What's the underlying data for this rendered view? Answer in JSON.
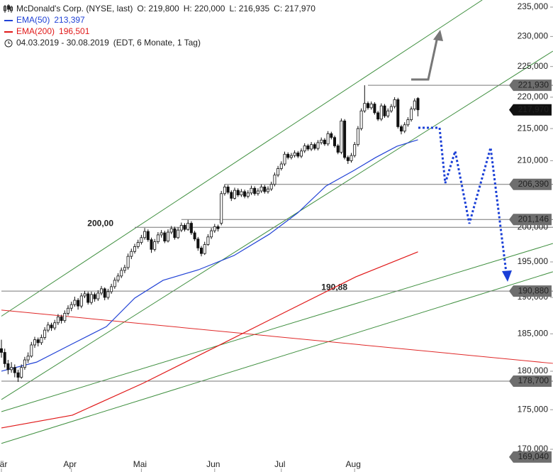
{
  "chart_data": {
    "type": "candlestick",
    "title": "McDonald's Corp. (NYSE, last)",
    "ohlc_labels": [
      "O: 219,800",
      "H: 220,000",
      "L: 216,935",
      "C: 217,970"
    ],
    "period": "04.03.2019 - 30.08.2019",
    "period_note": "(EDT, 6 Monate, 1 Tag)",
    "log_scale": true,
    "ylim": [
      170000,
      235000
    ],
    "yticks": [
      {
        "value": 170000,
        "label": "170,000"
      },
      {
        "value": 175000,
        "label": "175,000"
      },
      {
        "value": 180000,
        "label": "180,000"
      },
      {
        "value": 185000,
        "label": "185,000"
      },
      {
        "value": 190000,
        "label": "190,000"
      },
      {
        "value": 195000,
        "label": "195,000"
      },
      {
        "value": 200000,
        "label": "200,000"
      },
      {
        "value": 210000,
        "label": "210,000"
      },
      {
        "value": 215000,
        "label": "215,000"
      },
      {
        "value": 220000,
        "label": "220,000"
      },
      {
        "value": 225000,
        "label": "225,000"
      },
      {
        "value": 230000,
        "label": "230,000"
      },
      {
        "value": 235000,
        "label": "235,000"
      }
    ],
    "xticks": [
      {
        "value": 0,
        "label": "Mär"
      },
      {
        "value": 21,
        "label": "Apr"
      },
      {
        "value": 42,
        "label": "Mai"
      },
      {
        "value": 64,
        "label": "Jun"
      },
      {
        "value": 84,
        "label": "Jul"
      },
      {
        "value": 106,
        "label": "Aug"
      }
    ],
    "candles": [
      [
        183000,
        184200,
        181800,
        182500
      ],
      [
        182500,
        183000,
        180500,
        181000
      ],
      [
        181000,
        181500,
        179600,
        180200
      ],
      [
        180200,
        181200,
        179800,
        180500
      ],
      [
        180500,
        180900,
        179200,
        179800
      ],
      [
        179800,
        180200,
        178600,
        179200
      ],
      [
        179200,
        180900,
        179000,
        180500
      ],
      [
        180500,
        181900,
        180200,
        181500
      ],
      [
        181500,
        182500,
        181100,
        182000
      ],
      [
        182000,
        183900,
        181800,
        183500
      ],
      [
        183500,
        184600,
        183100,
        184200
      ],
      [
        184200,
        184500,
        183300,
        183800
      ],
      [
        183800,
        184900,
        183500,
        184500
      ],
      [
        184500,
        185900,
        184200,
        185500
      ],
      [
        185500,
        186600,
        185200,
        186200
      ],
      [
        186200,
        186500,
        185400,
        185800
      ],
      [
        185800,
        186900,
        185500,
        186500
      ],
      [
        186500,
        187700,
        186200,
        187300
      ],
      [
        187300,
        187600,
        186400,
        186800
      ],
      [
        186800,
        188200,
        186500,
        187800
      ],
      [
        187800,
        188900,
        187500,
        188500
      ],
      [
        188500,
        189400,
        188100,
        189000
      ],
      [
        189000,
        190100,
        188700,
        189600
      ],
      [
        189600,
        189900,
        188300,
        188800
      ],
      [
        188800,
        190600,
        188500,
        190200
      ],
      [
        190200,
        190900,
        189900,
        190500
      ],
      [
        190500,
        190800,
        189000,
        189300
      ],
      [
        189300,
        190800,
        189000,
        190400
      ],
      [
        190400,
        190700,
        189400,
        189800
      ],
      [
        189800,
        191000,
        189500,
        190600
      ],
      [
        190600,
        191600,
        190300,
        191200
      ],
      [
        191200,
        191400,
        189600,
        190000
      ],
      [
        190000,
        191200,
        189700,
        190800
      ],
      [
        190800,
        191900,
        190500,
        191500
      ],
      [
        191500,
        192800,
        191200,
        192400
      ],
      [
        192400,
        193400,
        192100,
        193000
      ],
      [
        193000,
        194200,
        192700,
        193800
      ],
      [
        193800,
        194600,
        193400,
        194200
      ],
      [
        194200,
        196200,
        193900,
        195800
      ],
      [
        195800,
        196900,
        195400,
        196500
      ],
      [
        196500,
        197600,
        196200,
        197200
      ],
      [
        197200,
        198200,
        196900,
        197800
      ],
      [
        197800,
        198900,
        197500,
        198500
      ],
      [
        198500,
        199900,
        198200,
        199400
      ],
      [
        199400,
        199700,
        197900,
        198200
      ],
      [
        198200,
        198500,
        196300,
        196800
      ],
      [
        196800,
        198300,
        196500,
        197900
      ],
      [
        197900,
        199300,
        197600,
        198900
      ],
      [
        198900,
        199600,
        198500,
        199200
      ],
      [
        199200,
        199500,
        197700,
        198000
      ],
      [
        198000,
        199700,
        197800,
        199300
      ],
      [
        199300,
        200200,
        199000,
        199800
      ],
      [
        199800,
        200100,
        198200,
        198500
      ],
      [
        198500,
        200000,
        198300,
        199600
      ],
      [
        199600,
        200700,
        199300,
        200300
      ],
      [
        200300,
        200600,
        199400,
        199700
      ],
      [
        199700,
        201100,
        199500,
        200600
      ],
      [
        200600,
        200900,
        198900,
        199200
      ],
      [
        199200,
        199500,
        198000,
        198300
      ],
      [
        198300,
        198600,
        196600,
        197000
      ],
      [
        197000,
        197300,
        195800,
        196200
      ],
      [
        196200,
        197900,
        196000,
        197500
      ],
      [
        197500,
        199000,
        197300,
        198600
      ],
      [
        198600,
        199900,
        198300,
        199500
      ],
      [
        199500,
        200500,
        199200,
        200100
      ],
      [
        200100,
        200400,
        199400,
        199800
      ],
      [
        200600,
        205400,
        200300,
        205000
      ],
      [
        205000,
        206400,
        204700,
        206000
      ],
      [
        206000,
        206300,
        204900,
        205200
      ],
      [
        205200,
        205500,
        203900,
        204300
      ],
      [
        204300,
        205900,
        204100,
        205500
      ],
      [
        205500,
        205800,
        204500,
        204800
      ],
      [
        204800,
        205700,
        204500,
        205300
      ],
      [
        205300,
        205600,
        204300,
        204600
      ],
      [
        204600,
        205500,
        204300,
        205100
      ],
      [
        205100,
        206200,
        204800,
        205800
      ],
      [
        205800,
        206100,
        204700,
        205000
      ],
      [
        205000,
        205800,
        204700,
        205400
      ],
      [
        205400,
        206400,
        205100,
        206000
      ],
      [
        206000,
        206300,
        205000,
        205300
      ],
      [
        205300,
        206100,
        205000,
        205700
      ],
      [
        205700,
        206800,
        205400,
        206400
      ],
      [
        206400,
        208200,
        206100,
        207800
      ],
      [
        207800,
        209200,
        207500,
        208800
      ],
      [
        208800,
        209900,
        208500,
        209500
      ],
      [
        209500,
        211400,
        209200,
        211000
      ],
      [
        211000,
        211300,
        210200,
        210500
      ],
      [
        210500,
        211200,
        210200,
        210800
      ],
      [
        210800,
        211600,
        210500,
        211200
      ],
      [
        211200,
        211500,
        210400,
        210700
      ],
      [
        210700,
        211900,
        210400,
        211500
      ],
      [
        211500,
        212700,
        211200,
        212300
      ],
      [
        212300,
        212600,
        211500,
        211800
      ],
      [
        211800,
        212900,
        211500,
        212500
      ],
      [
        212500,
        212800,
        211600,
        211900
      ],
      [
        211900,
        213200,
        211600,
        212800
      ],
      [
        212800,
        213600,
        212500,
        213200
      ],
      [
        213200,
        213500,
        212300,
        212600
      ],
      [
        212600,
        214600,
        212300,
        214200
      ],
      [
        214200,
        214500,
        213300,
        213600
      ],
      [
        213600,
        213900,
        212000,
        212300
      ],
      [
        212300,
        212600,
        211000,
        211300
      ],
      [
        211300,
        216600,
        211000,
        216200
      ],
      [
        216200,
        216500,
        210200,
        210500
      ],
      [
        210500,
        210800,
        209500,
        210000
      ],
      [
        210000,
        211200,
        209700,
        210800
      ],
      [
        210800,
        212900,
        210500,
        212500
      ],
      [
        212500,
        215400,
        212200,
        215000
      ],
      [
        215000,
        218200,
        214700,
        217800
      ],
      [
        217800,
        221930,
        217500,
        219000
      ],
      [
        219000,
        219300,
        218000,
        218300
      ],
      [
        218300,
        219300,
        218000,
        218900
      ],
      [
        218900,
        219200,
        217200,
        217500
      ],
      [
        217500,
        217800,
        216200,
        216500
      ],
      [
        216500,
        219000,
        216200,
        218600
      ],
      [
        218600,
        218900,
        216700,
        217000
      ],
      [
        217000,
        218200,
        216700,
        217800
      ],
      [
        217800,
        218900,
        217500,
        218500
      ],
      [
        218500,
        220000,
        218200,
        219600
      ],
      [
        219600,
        219900,
        215000,
        215300
      ],
      [
        215300,
        215600,
        214100,
        214600
      ],
      [
        214600,
        216000,
        214300,
        215600
      ],
      [
        215600,
        216800,
        215300,
        216400
      ],
      [
        216400,
        218500,
        216100,
        218100
      ],
      [
        218100,
        219800,
        217800,
        219400
      ],
      [
        219800,
        220000,
        216935,
        217970
      ]
    ],
    "series": [
      {
        "name": "EMA(50)",
        "value_label": "213,397",
        "color": "#2142d6",
        "x": [
          0,
          10.6,
          21,
          31.5,
          40,
          48.5,
          59.2,
          69.8,
          80.4,
          88.9,
          97.4,
          105.9,
          112.3,
          118.7,
          125
        ],
        "values": [
          180010,
          181210,
          183580,
          185980,
          189900,
          192390,
          193890,
          195920,
          199000,
          202120,
          206140,
          208540,
          210490,
          212230,
          213240
        ]
      },
      {
        "name": "EMA(200)",
        "value_label": "196,501",
        "color": "#e01818",
        "x": [
          0,
          21.3,
          42.6,
          63.8,
          85.1,
          106.4,
          125
        ],
        "values": [
          172680,
          174300,
          178440,
          183110,
          187950,
          192890,
          196440
        ]
      }
    ],
    "lines": [
      {
        "color": "#3f8f3f",
        "x": [
          0,
          144.3
        ],
        "values": [
          187400,
          236225
        ]
      },
      {
        "color": "#3f8f3f",
        "x": [
          0,
          165.5
        ],
        "values": [
          176300,
          227550
        ]
      },
      {
        "color": "#3f8f3f",
        "x": [
          0,
          165.5
        ],
        "values": [
          174750,
          197650
        ]
      },
      {
        "color": "#3f8f3f",
        "x": [
          0,
          165.5
        ],
        "values": [
          170730,
          193600
        ]
      },
      {
        "color": "#e02828",
        "x": [
          0,
          165.5
        ],
        "values": [
          188240,
          181040
        ]
      }
    ],
    "levels": [
      {
        "value": 221930,
        "label": "221,930",
        "from": 110
      },
      {
        "value": 217970,
        "label": "217,970",
        "current": true
      },
      {
        "value": 206390,
        "label": "206,390",
        "from": 67
      },
      {
        "value": 201146,
        "label": "201,146",
        "from": 54
      },
      {
        "value": 200000,
        "from": 40,
        "annotation": "200,00"
      },
      {
        "value": 190880,
        "label": "190,880",
        "from": 0,
        "annotation": "190,88"
      },
      {
        "value": 178700,
        "label": "178,700",
        "from": 0
      },
      {
        "value": 169040,
        "label": "169,040"
      }
    ]
  }
}
